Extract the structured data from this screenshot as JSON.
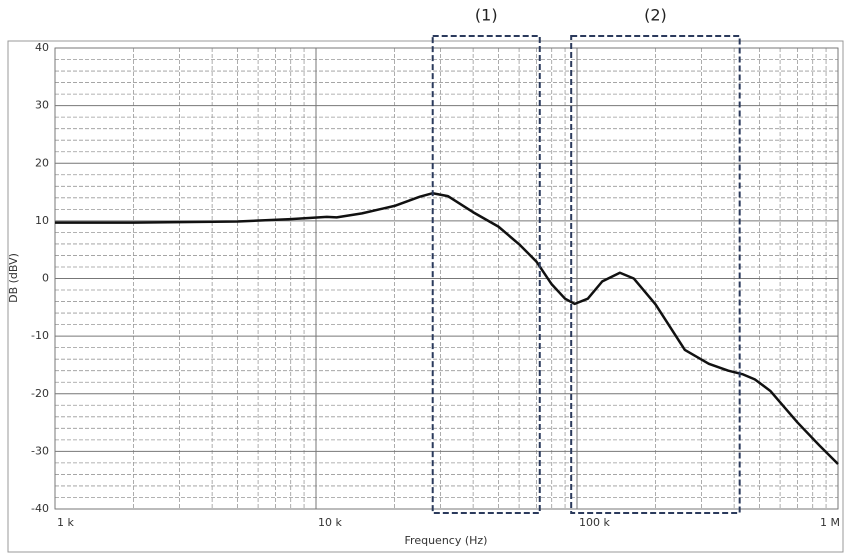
{
  "chart_data": {
    "type": "line",
    "x_label": "Frequency (Hz)",
    "y_label": "DB (dBV)",
    "log_x": true,
    "grid": true,
    "minor_grid": true,
    "xlim": [
      1000,
      1000000
    ],
    "xticks": [
      {
        "value": 1000,
        "label": "1 k"
      },
      {
        "value": 10000,
        "label": "10 k"
      },
      {
        "value": 100000,
        "label": "100 k"
      },
      {
        "value": 1000000,
        "label": "1 M"
      }
    ],
    "ylim": [
      -40,
      40
    ],
    "yticks": [
      -40,
      -30,
      -20,
      -10,
      0,
      10,
      20,
      30,
      40
    ],
    "series": [
      {
        "color": "#111111",
        "x": [
          1000,
          2000,
          5000,
          8000,
          11000,
          12000,
          15000,
          20000,
          25000,
          28000,
          32000,
          40000,
          50000,
          60500,
          70000,
          80000,
          90000,
          98000,
          110000,
          125000,
          146000,
          165000,
          200000,
          259000,
          320000,
          380000,
          430000,
          480000,
          550000,
          700000,
          850000,
          1000000
        ],
        "values": [
          9.7,
          9.7,
          9.9,
          10.3,
          10.7,
          10.6,
          11.3,
          12.6,
          14.2,
          14.8,
          14.3,
          11.5,
          9.0,
          5.8,
          2.9,
          -1.0,
          -3.5,
          -4.4,
          -3.5,
          -0.5,
          1.0,
          0.0,
          -4.5,
          -12.4,
          -14.8,
          -16.0,
          -16.6,
          -17.5,
          -19.5,
          -25.0,
          -29.0,
          -32.2
        ]
      }
    ],
    "annotations": [
      {
        "text": "(1)",
        "x_range": [
          28000,
          72000
        ]
      },
      {
        "text": "(2)",
        "x_range": [
          95000,
          420000
        ]
      }
    ]
  }
}
